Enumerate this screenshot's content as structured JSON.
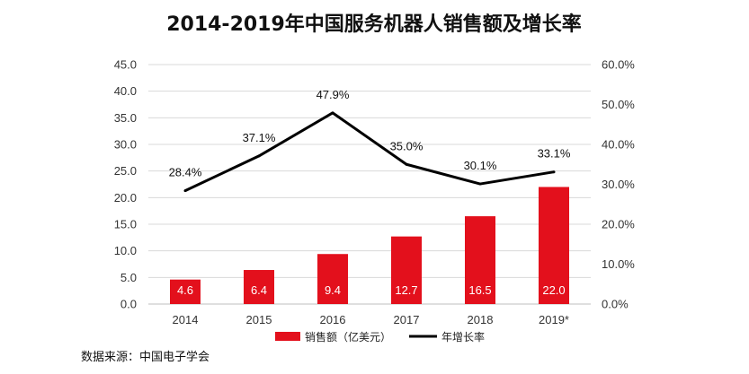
{
  "chart_data": {
    "type": "bar",
    "title": "2014-2019年中国服务机器人销售额及增长率",
    "categories": [
      "2014",
      "2015",
      "2016",
      "2017",
      "2018",
      "2019*"
    ],
    "series": [
      {
        "name": "销售额（亿美元）",
        "type": "bar",
        "axis": "left",
        "values": [
          4.6,
          6.4,
          9.4,
          12.7,
          16.5,
          22.0
        ],
        "labels": [
          "4.6",
          "6.4",
          "9.4",
          "12.7",
          "16.5",
          "22.0"
        ],
        "color": "#e3101c"
      },
      {
        "name": "年增长率",
        "type": "line",
        "axis": "right",
        "values": [
          28.4,
          37.1,
          47.9,
          35.0,
          30.1,
          33.1
        ],
        "labels": [
          "28.4%",
          "37.1%",
          "47.9%",
          "35.0%",
          "30.1%",
          "33.1%"
        ],
        "color": "#000000"
      }
    ],
    "y_left": {
      "ylim": [
        0,
        45
      ],
      "ticks": [
        "0.0",
        "5.0",
        "10.0",
        "15.0",
        "20.0",
        "25.0",
        "30.0",
        "35.0",
        "40.0",
        "45.0"
      ]
    },
    "y_right": {
      "ylim": [
        0,
        60
      ],
      "ticks": [
        "0.0%",
        "10.0%",
        "20.0%",
        "30.0%",
        "40.0%",
        "50.0%",
        "60.0%"
      ]
    },
    "grid": true,
    "legend_position": "bottom"
  },
  "source": "数据来源：中国电子学会"
}
